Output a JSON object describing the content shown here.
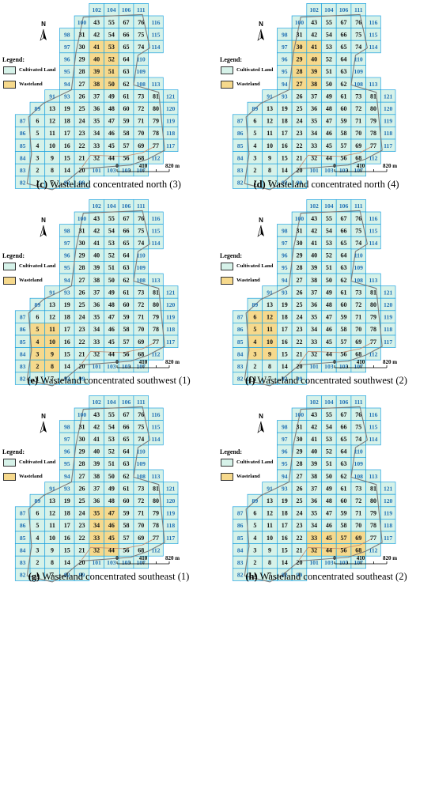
{
  "legend": {
    "title": "Legend:",
    "cultivated_label": "Cultivated Land",
    "wasteland_label": "Wasteland"
  },
  "north_label": "N",
  "scale": {
    "ticks": [
      "0",
      "410",
      "820 m"
    ]
  },
  "colors": {
    "cultivated": "#d6f2e9",
    "wasteland": "#f6d98c",
    "cell_border": "#1fa3e0",
    "outline": "#7c7c7c",
    "inner_outline": "#c0866a",
    "outer_label": "#1f6fb3"
  },
  "grid": {
    "cells": [
      {
        "id": "43",
        "c": 4,
        "r": 0
      },
      {
        "id": "55",
        "c": 5,
        "r": 0
      },
      {
        "id": "67",
        "c": 6,
        "r": 0
      },
      {
        "id": "76",
        "c": 7,
        "r": 0
      },
      {
        "id": "31",
        "c": 3,
        "r": 1
      },
      {
        "id": "42",
        "c": 4,
        "r": 1
      },
      {
        "id": "54",
        "c": 5,
        "r": 1
      },
      {
        "id": "66",
        "c": 6,
        "r": 1
      },
      {
        "id": "75",
        "c": 7,
        "r": 1
      },
      {
        "id": "30",
        "c": 3,
        "r": 2
      },
      {
        "id": "41",
        "c": 4,
        "r": 2
      },
      {
        "id": "53",
        "c": 5,
        "r": 2
      },
      {
        "id": "65",
        "c": 6,
        "r": 2
      },
      {
        "id": "74",
        "c": 7,
        "r": 2
      },
      {
        "id": "29",
        "c": 3,
        "r": 3
      },
      {
        "id": "40",
        "c": 4,
        "r": 3
      },
      {
        "id": "52",
        "c": 5,
        "r": 3
      },
      {
        "id": "64",
        "c": 6,
        "r": 3
      },
      {
        "id": "28",
        "c": 3,
        "r": 4
      },
      {
        "id": "39",
        "c": 4,
        "r": 4
      },
      {
        "id": "51",
        "c": 5,
        "r": 4
      },
      {
        "id": "63",
        "c": 6,
        "r": 4
      },
      {
        "id": "27",
        "c": 3,
        "r": 5
      },
      {
        "id": "38",
        "c": 4,
        "r": 5
      },
      {
        "id": "50",
        "c": 5,
        "r": 5
      },
      {
        "id": "62",
        "c": 6,
        "r": 5
      },
      {
        "id": "26",
        "c": 3,
        "r": 6
      },
      {
        "id": "37",
        "c": 4,
        "r": 6
      },
      {
        "id": "49",
        "c": 5,
        "r": 6
      },
      {
        "id": "61",
        "c": 6,
        "r": 6
      },
      {
        "id": "73",
        "c": 7,
        "r": 6
      },
      {
        "id": "81",
        "c": 8,
        "r": 6
      },
      {
        "id": "13",
        "c": 1,
        "r": 7
      },
      {
        "id": "19",
        "c": 2,
        "r": 7
      },
      {
        "id": "25",
        "c": 3,
        "r": 7
      },
      {
        "id": "36",
        "c": 4,
        "r": 7
      },
      {
        "id": "48",
        "c": 5,
        "r": 7
      },
      {
        "id": "60",
        "c": 6,
        "r": 7
      },
      {
        "id": "72",
        "c": 7,
        "r": 7
      },
      {
        "id": "80",
        "c": 8,
        "r": 7
      },
      {
        "id": "6",
        "c": 0,
        "r": 8
      },
      {
        "id": "12",
        "c": 1,
        "r": 8
      },
      {
        "id": "18",
        "c": 2,
        "r": 8
      },
      {
        "id": "24",
        "c": 3,
        "r": 8
      },
      {
        "id": "35",
        "c": 4,
        "r": 8
      },
      {
        "id": "47",
        "c": 5,
        "r": 8
      },
      {
        "id": "59",
        "c": 6,
        "r": 8
      },
      {
        "id": "71",
        "c": 7,
        "r": 8
      },
      {
        "id": "79",
        "c": 8,
        "r": 8
      },
      {
        "id": "5",
        "c": 0,
        "r": 9
      },
      {
        "id": "11",
        "c": 1,
        "r": 9
      },
      {
        "id": "17",
        "c": 2,
        "r": 9
      },
      {
        "id": "23",
        "c": 3,
        "r": 9
      },
      {
        "id": "34",
        "c": 4,
        "r": 9
      },
      {
        "id": "46",
        "c": 5,
        "r": 9
      },
      {
        "id": "58",
        "c": 6,
        "r": 9
      },
      {
        "id": "70",
        "c": 7,
        "r": 9
      },
      {
        "id": "78",
        "c": 8,
        "r": 9
      },
      {
        "id": "4",
        "c": 0,
        "r": 10
      },
      {
        "id": "10",
        "c": 1,
        "r": 10
      },
      {
        "id": "16",
        "c": 2,
        "r": 10
      },
      {
        "id": "22",
        "c": 3,
        "r": 10
      },
      {
        "id": "33",
        "c": 4,
        "r": 10
      },
      {
        "id": "45",
        "c": 5,
        "r": 10
      },
      {
        "id": "57",
        "c": 6,
        "r": 10
      },
      {
        "id": "69",
        "c": 7,
        "r": 10
      },
      {
        "id": "77",
        "c": 8,
        "r": 10
      },
      {
        "id": "3",
        "c": 0,
        "r": 11
      },
      {
        "id": "9",
        "c": 1,
        "r": 11
      },
      {
        "id": "15",
        "c": 2,
        "r": 11
      },
      {
        "id": "21",
        "c": 3,
        "r": 11
      },
      {
        "id": "32",
        "c": 4,
        "r": 11
      },
      {
        "id": "44",
        "c": 5,
        "r": 11
      },
      {
        "id": "56",
        "c": 6,
        "r": 11
      },
      {
        "id": "68",
        "c": 7,
        "r": 11
      },
      {
        "id": "2",
        "c": 0,
        "r": 12
      },
      {
        "id": "8",
        "c": 1,
        "r": 12
      },
      {
        "id": "14",
        "c": 2,
        "r": 12
      },
      {
        "id": "20",
        "c": 3,
        "r": 12
      },
      {
        "id": "1",
        "c": 0,
        "r": 13
      },
      {
        "id": "7",
        "c": 1,
        "r": 13
      }
    ],
    "outer": [
      {
        "id": "102",
        "c": 4,
        "r": -1
      },
      {
        "id": "104",
        "c": 5,
        "r": -1
      },
      {
        "id": "106",
        "c": 6,
        "r": -1
      },
      {
        "id": "111",
        "c": 7,
        "r": -1
      },
      {
        "id": "100",
        "c": 3,
        "r": 0
      },
      {
        "id": "116",
        "c": 8,
        "r": 0
      },
      {
        "id": "98",
        "c": 2,
        "r": 1
      },
      {
        "id": "115",
        "c": 8,
        "r": 1
      },
      {
        "id": "97",
        "c": 2,
        "r": 2
      },
      {
        "id": "114",
        "c": 8,
        "r": 2
      },
      {
        "id": "96",
        "c": 2,
        "r": 3
      },
      {
        "id": "110",
        "c": 7,
        "r": 3
      },
      {
        "id": "95",
        "c": 2,
        "r": 4
      },
      {
        "id": "109",
        "c": 7,
        "r": 4
      },
      {
        "id": "94",
        "c": 2,
        "r": 5
      },
      {
        "id": "108",
        "c": 7,
        "r": 5
      },
      {
        "id": "113",
        "c": 8,
        "r": 5
      },
      {
        "id": "91",
        "c": 1,
        "r": 6
      },
      {
        "id": "93",
        "c": 2,
        "r": 6
      },
      {
        "id": "121",
        "c": 9,
        "r": 6
      },
      {
        "id": "89",
        "c": 0,
        "r": 7
      },
      {
        "id": "120",
        "c": 9,
        "r": 7
      },
      {
        "id": "87",
        "c": -1,
        "r": 8
      },
      {
        "id": "119",
        "c": 9,
        "r": 8
      },
      {
        "id": "86",
        "c": -1,
        "r": 9
      },
      {
        "id": "118",
        "c": 9,
        "r": 9
      },
      {
        "id": "85",
        "c": -1,
        "r": 10
      },
      {
        "id": "117",
        "c": 9,
        "r": 10
      },
      {
        "id": "84",
        "c": -1,
        "r": 11
      },
      {
        "id": "112",
        "c": 8,
        "r": 11
      },
      {
        "id": "83",
        "c": -1,
        "r": 12
      },
      {
        "id": "101",
        "c": 4,
        "r": 12
      },
      {
        "id": "103",
        "c": 5,
        "r": 12
      },
      {
        "id": "105",
        "c": 6,
        "r": 12
      },
      {
        "id": "107",
        "c": 7,
        "r": 12
      },
      {
        "id": "82",
        "c": -1,
        "r": 13
      },
      {
        "id": "92",
        "c": 2,
        "r": 13
      },
      {
        "id": "99",
        "c": 3,
        "r": 13
      }
    ]
  },
  "panels": [
    {
      "caption_letter": "(c)",
      "caption_text": " Wasteland concentrated north (3)",
      "wasteland": [
        "41",
        "53",
        "40",
        "52",
        "39",
        "51",
        "38",
        "50"
      ]
    },
    {
      "caption_letter": "(d)",
      "caption_text": " Wasteland concentrated north (4)",
      "wasteland": [
        "30",
        "41",
        "29",
        "40",
        "28",
        "39",
        "27",
        "38"
      ]
    },
    {
      "caption_letter": "(e)",
      "caption_text": " Wasteland concentrated southwest (1)",
      "wasteland": [
        "5",
        "11",
        "4",
        "10",
        "3",
        "9",
        "2",
        "8"
      ]
    },
    {
      "caption_letter": "(f)",
      "caption_text": " Wasteland concentrated southwest (2)",
      "wasteland": [
        "6",
        "12",
        "5",
        "11",
        "4",
        "10",
        "3",
        "9"
      ]
    },
    {
      "caption_letter": "(g)",
      "caption_text": " Wasteland concentrated southeast (1)",
      "wasteland": [
        "35",
        "47",
        "34",
        "46",
        "33",
        "45",
        "32",
        "44"
      ]
    },
    {
      "caption_letter": "(h)",
      "caption_text": " Wasteland concentrated southeast (2)",
      "wasteland": [
        "33",
        "45",
        "57",
        "69",
        "32",
        "44",
        "56",
        "68"
      ]
    }
  ]
}
